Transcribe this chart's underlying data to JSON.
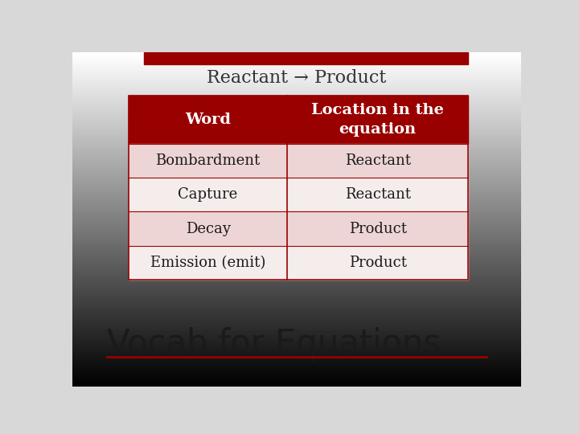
{
  "title": "Reactant → Product",
  "title_fontsize": 16,
  "title_color": "#333333",
  "header_row": [
    "Word",
    "Location in the\nequation"
  ],
  "data_rows": [
    [
      "Bombardment",
      "Reactant"
    ],
    [
      "Capture",
      "Reactant"
    ],
    [
      "Decay",
      "Product"
    ],
    [
      "Emission (emit)",
      "Product"
    ]
  ],
  "header_bg": "#990000",
  "header_text_color": "#FFFFFF",
  "row_bg_odd": "#EDD5D5",
  "row_bg_even": "#F5ECEC",
  "row_text_color": "#1a1a1a",
  "table_border_color": "#990000",
  "top_bar_color": "#990000",
  "bg_color": "#D8D8D8",
  "footer_text": "Vocab for Equations",
  "footer_fontsize": 30,
  "footer_color": "#1a1a1a",
  "footer_line_color": "#990000",
  "cell_fontsize": 13,
  "header_fontsize": 14
}
